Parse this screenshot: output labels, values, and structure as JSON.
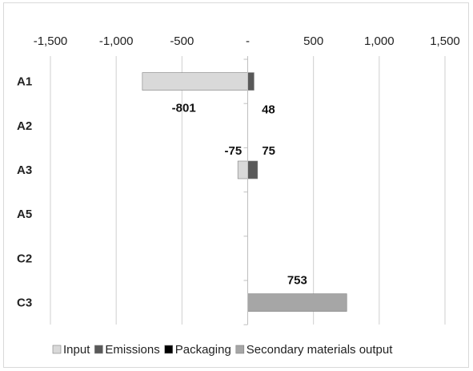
{
  "chart_data": {
    "type": "bar",
    "orientation": "horizontal",
    "stacked": true,
    "categories": [
      "A1",
      "A2",
      "A3",
      "A5",
      "C2",
      "C3"
    ],
    "series": [
      {
        "name": "Input",
        "color": "#d9d9d9",
        "values": [
          -801,
          0,
          -75,
          0,
          0,
          0
        ]
      },
      {
        "name": "Emissions",
        "color": "#595959",
        "values": [
          48,
          0,
          75,
          0,
          0,
          0
        ]
      },
      {
        "name": "Packaging",
        "color": "#000000",
        "values": [
          0,
          0,
          0,
          0,
          0,
          0
        ]
      },
      {
        "name": "Secondary materials output",
        "color": "#a6a6a6",
        "values": [
          0,
          0,
          0,
          0,
          0,
          753
        ]
      }
    ],
    "xlim": [
      -1500,
      1500
    ],
    "xticks": [
      -1500,
      -1000,
      -500,
      0,
      500,
      1000,
      1500
    ],
    "xtick_labels": [
      "-1,500",
      "-1,000",
      "-500",
      "-",
      "500",
      "1,000",
      "1,500"
    ],
    "x_axis_position": "top",
    "grid": true,
    "legend_position": "bottom",
    "data_labels": [
      {
        "category": "A1",
        "series": "Input",
        "text": "-801"
      },
      {
        "category": "A1",
        "series": "Emissions",
        "text": "48"
      },
      {
        "category": "A3",
        "series": "Input",
        "text": "-75"
      },
      {
        "category": "A3",
        "series": "Emissions",
        "text": "75"
      },
      {
        "category": "C3",
        "series": "Secondary materials output",
        "text": "753"
      }
    ]
  }
}
